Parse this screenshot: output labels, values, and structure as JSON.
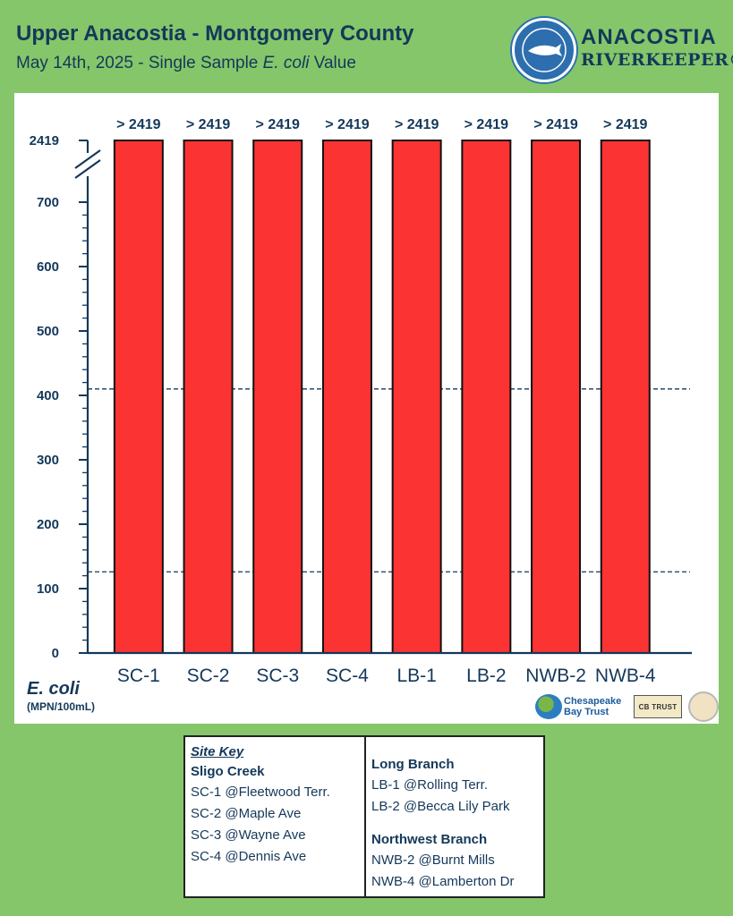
{
  "header": {
    "title": "Upper Anacostia - Montgomery County",
    "subtitle_pre": "May 14th, 2025 - Single Sample ",
    "subtitle_em": "E. coli",
    "subtitle_post": " Value"
  },
  "logo": {
    "line1": "ANACOSTIA",
    "line2": "RIVERKEEPER®"
  },
  "chart_data": {
    "type": "bar",
    "categories": [
      "SC-1",
      "SC-2",
      "SC-3",
      "SC-4",
      "LB-1",
      "LB-2",
      "NWB-2",
      "NWB-4"
    ],
    "values": [
      2419,
      2419,
      2419,
      2419,
      2419,
      2419,
      2419,
      2419
    ],
    "data_labels": [
      "> 2419",
      "> 2419",
      "> 2419",
      "> 2419",
      "> 2419",
      "> 2419",
      "> 2419",
      "> 2419"
    ],
    "ylabel": "E. coli",
    "ylabel_units": "(MPN/100mL)",
    "yticks": [
      0,
      100,
      200,
      300,
      400,
      500,
      600,
      700,
      2419
    ],
    "ylim": [
      0,
      775
    ],
    "axis_break": true,
    "reference_lines": [
      410,
      126
    ],
    "bar_color": "#fb3333"
  },
  "sponsors": {
    "cbt_line1": "Chesapeake",
    "cbt_line2": "Bay Trust",
    "plate": "CB TRUST"
  },
  "site_key": {
    "title": "Site Key",
    "groups": [
      {
        "name": "Sligo Creek",
        "items": [
          "SC-1 @Fleetwood Terr.",
          "SC-2 @Maple Ave",
          "SC-3 @Wayne Ave",
          "SC-4 @Dennis Ave"
        ]
      },
      {
        "name": "Long Branch",
        "items": [
          "LB-1 @Rolling Terr.",
          "LB-2 @Becca Lily Park"
        ]
      },
      {
        "name": "Northwest Branch",
        "items": [
          "NWB-2 @Burnt Mills",
          "NWB-4 @Lamberton Dr"
        ]
      }
    ]
  }
}
